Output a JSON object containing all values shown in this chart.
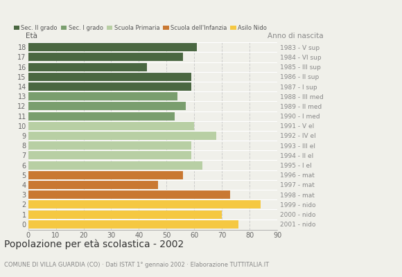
{
  "ages": [
    18,
    17,
    16,
    15,
    14,
    13,
    12,
    11,
    10,
    9,
    8,
    7,
    6,
    5,
    4,
    3,
    2,
    1,
    0
  ],
  "values": [
    61,
    56,
    43,
    59,
    59,
    54,
    57,
    53,
    60,
    68,
    59,
    59,
    63,
    56,
    47,
    73,
    84,
    70,
    76
  ],
  "right_labels": [
    "1983 - V sup",
    "1984 - VI sup",
    "1985 - III sup",
    "1986 - II sup",
    "1987 - I sup",
    "1988 - III med",
    "1989 - II med",
    "1990 - I med",
    "1991 - V el",
    "1992 - IV el",
    "1993 - III el",
    "1994 - II el",
    "1995 - I el",
    "1996 - mat",
    "1997 - mat",
    "1998 - mat",
    "1999 - nido",
    "2000 - nido",
    "2001 - nido"
  ],
  "bar_colors": [
    "#4a6741",
    "#4a6741",
    "#4a6741",
    "#4a6741",
    "#4a6741",
    "#7a9e6e",
    "#7a9e6e",
    "#7a9e6e",
    "#b8cfa4",
    "#b8cfa4",
    "#b8cfa4",
    "#b8cfa4",
    "#b8cfa4",
    "#c97832",
    "#c97832",
    "#c97832",
    "#f5c842",
    "#f5c842",
    "#f5c842"
  ],
  "legend_labels": [
    "Sec. II grado",
    "Sec. I grado",
    "Scuola Primaria",
    "Scuola dell'Infanzia",
    "Asilo Nido"
  ],
  "legend_colors": [
    "#4a6741",
    "#7a9e6e",
    "#b8cfa4",
    "#c97832",
    "#f5c842"
  ],
  "title": "Popolazione per età scolastica - 2002",
  "subtitle": "COMUNE DI VILLA GUARDIA (CO) · Dati ISTAT 1° gennaio 2002 · Elaborazione TUTTITALIA.IT",
  "xlabel_eta": "Età",
  "xlabel_anno": "Anno di nascita",
  "xlim": [
    0,
    90
  ],
  "xticks": [
    0,
    10,
    20,
    30,
    40,
    50,
    60,
    70,
    80,
    90
  ],
  "background_color": "#f0f0ea",
  "grid_color": "#cccccc"
}
